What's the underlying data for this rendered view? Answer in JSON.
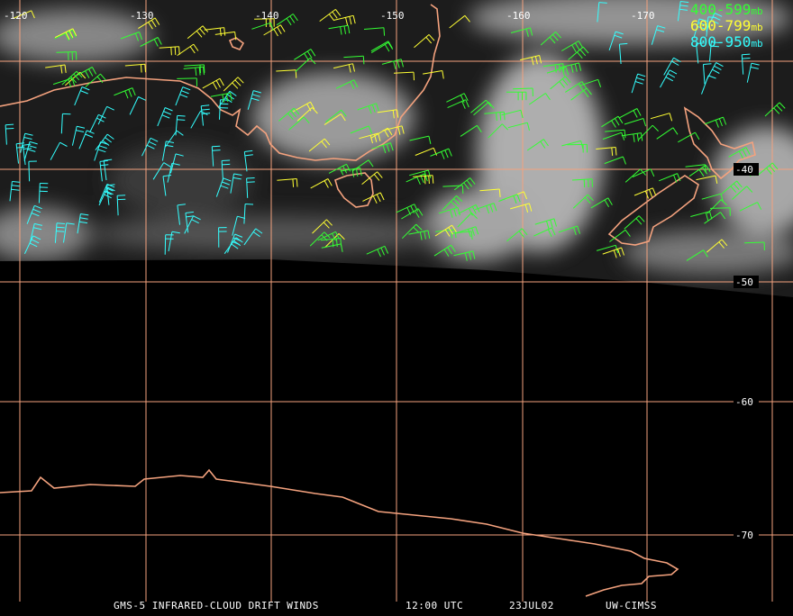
{
  "map": {
    "longitude_labels": [
      "-120",
      "-130",
      "-140",
      "-150",
      "-160",
      "-170"
    ],
    "latitude_labels": [
      "-40",
      "-50",
      "-60",
      "-70"
    ]
  },
  "legend": [
    {
      "level": "400-599",
      "unit": "mb",
      "color": "#33ff33"
    },
    {
      "level": "600-799",
      "unit": "mb",
      "color": "#ffff33"
    },
    {
      "level": "800-950",
      "unit": "mb",
      "color": "#33ffff"
    }
  ],
  "footer": {
    "product": "GMS-5 INFRARED-CLOUD DRIFT WINDS",
    "time": "12:00 UTC",
    "date": "23JUL02",
    "source": "UW-CIMSS"
  }
}
